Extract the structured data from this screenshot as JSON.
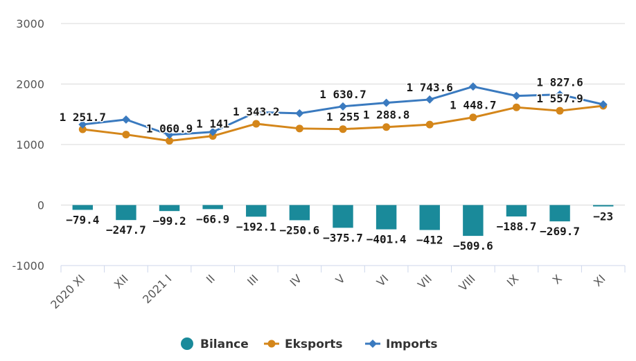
{
  "chart_data": {
    "type": "bar",
    "title": "",
    "xlabel": "",
    "ylabel": "",
    "ylim": [
      -1000,
      3000
    ],
    "yticks": [
      "-1000",
      "0",
      "1000",
      "2000",
      "3000"
    ],
    "ytick_values": [
      -1000,
      0,
      1000,
      2000,
      3000
    ],
    "grid": true,
    "legend_position": "bottom-center",
    "categories": [
      "2020 XI",
      "XII",
      "2021 I",
      "II",
      "III",
      "IV",
      "V",
      "VI",
      "VII",
      "VIII",
      "IX",
      "X",
      "XI"
    ],
    "series": [
      {
        "name": "Bilance",
        "kind": "bar",
        "color": "#1a8a9a",
        "values": [
          -79.4,
          -247.7,
          -99.2,
          -66.9,
          -192.1,
          -250.6,
          -375.7,
          -401.4,
          -412,
          -509.6,
          -188.7,
          -269.7,
          -23
        ],
        "labels": [
          "−79.4",
          "−247.7",
          "−99.2",
          "−66.9",
          "−192.1",
          "−250.6",
          "−375.7",
          "−401.4",
          "−412",
          "−509.6",
          "−188.7",
          "−269.7",
          "−23"
        ]
      },
      {
        "name": "Eksports",
        "kind": "line",
        "color": "#d4861a",
        "values": [
          1251.7,
          1165,
          1060.9,
          1141,
          1343.2,
          1265,
          1255,
          1288.8,
          1330,
          1448.7,
          1615,
          1557.9,
          1640
        ],
        "labels": [
          "1 251.7",
          "",
          "1 060.9",
          "1 141",
          "1 343.2",
          "",
          "1 255",
          "1 288.8",
          "",
          "1 448.7",
          "",
          "1 557.9",
          ""
        ]
      },
      {
        "name": "Imports",
        "kind": "line",
        "color": "#3a7abf",
        "values": [
          1331,
          1413,
          1160,
          1208,
          1535,
          1516,
          1630.7,
          1690,
          1743.6,
          1958,
          1804,
          1827.6,
          1663
        ],
        "labels": [
          "",
          "",
          "",
          "",
          "",
          "",
          "1 630.7",
          "",
          "1 743.6",
          "",
          "",
          "1 827.6",
          ""
        ]
      }
    ]
  }
}
